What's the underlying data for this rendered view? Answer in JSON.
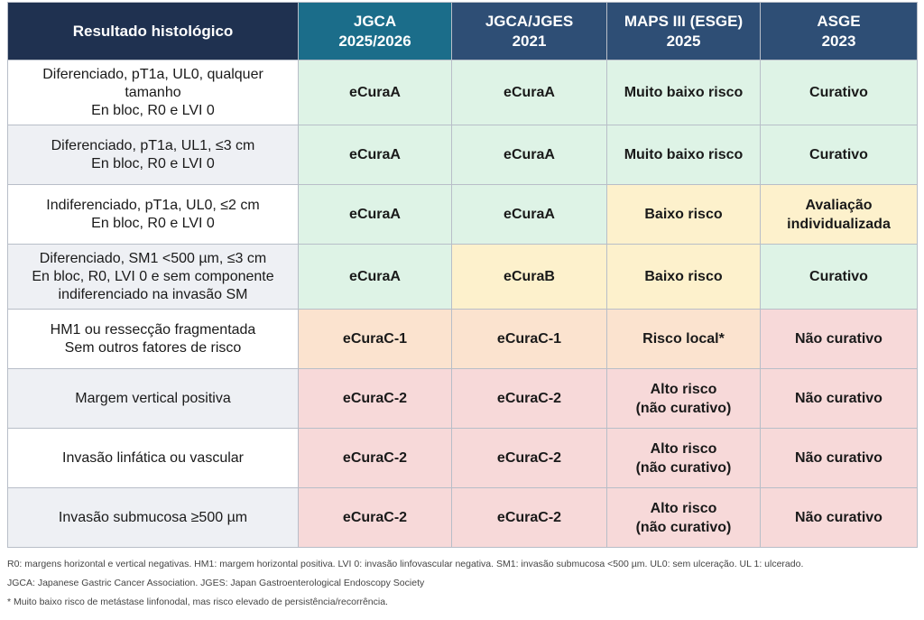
{
  "header": {
    "col0": "Resultado histológico",
    "col1": [
      "JGCA",
      "2025/2026"
    ],
    "col2": [
      "JGCA/JGES",
      "2021"
    ],
    "col3": [
      "MAPS III (ESGE)",
      "2025"
    ],
    "col4": [
      "ASGE",
      "2023"
    ]
  },
  "rows": [
    {
      "desc": [
        "Diferenciado, pT1a, UL0, qualquer",
        "tamanho",
        "En bloc, R0 e LVI 0"
      ],
      "c1": [
        "eCuraA"
      ],
      "c2": [
        "eCuraA"
      ],
      "c3": [
        "Muito baixo risco"
      ],
      "c4": [
        "Curativo"
      ],
      "colors": [
        "green",
        "green",
        "green",
        "green"
      ]
    },
    {
      "desc": [
        "Diferenciado, pT1a, UL1, ≤3 cm",
        "En bloc, R0 e LVI 0"
      ],
      "c1": [
        "eCuraA"
      ],
      "c2": [
        "eCuraA"
      ],
      "c3": [
        "Muito baixo risco"
      ],
      "c4": [
        "Curativo"
      ],
      "colors": [
        "green",
        "green",
        "green",
        "green"
      ]
    },
    {
      "desc": [
        "Indiferenciado, pT1a, UL0, ≤2 cm",
        "En bloc, R0 e LVI 0"
      ],
      "c1": [
        "eCuraA"
      ],
      "c2": [
        "eCuraA"
      ],
      "c3": [
        "Baixo risco"
      ],
      "c4": [
        "Avaliação",
        "individualizada"
      ],
      "colors": [
        "green",
        "green",
        "yellow",
        "yellow"
      ]
    },
    {
      "desc": [
        "Diferenciado, SM1 <500 µm, ≤3 cm",
        "En bloc, R0, LVI 0 e sem componente",
        "indiferenciado na invasão SM"
      ],
      "c1": [
        "eCuraA"
      ],
      "c2": [
        "eCuraB"
      ],
      "c3": [
        "Baixo risco"
      ],
      "c4": [
        "Curativo"
      ],
      "colors": [
        "green",
        "yellow",
        "yellow",
        "green"
      ]
    },
    {
      "desc": [
        "HM1 ou ressecção fragmentada",
        "Sem outros fatores de risco"
      ],
      "c1": [
        "eCuraC-1"
      ],
      "c2": [
        "eCuraC-1"
      ],
      "c3": [
        "Risco local*"
      ],
      "c4": [
        "Não curativo"
      ],
      "colors": [
        "orange",
        "orange",
        "orange",
        "red"
      ]
    },
    {
      "desc": [
        "Margem vertical positiva"
      ],
      "c1": [
        "eCuraC-2"
      ],
      "c2": [
        "eCuraC-2"
      ],
      "c3": [
        "Alto risco",
        "(não curativo)"
      ],
      "c4": [
        "Não curativo"
      ],
      "colors": [
        "red",
        "red",
        "red",
        "red"
      ]
    },
    {
      "desc": [
        "Invasão linfática ou vascular"
      ],
      "c1": [
        "eCuraC-2"
      ],
      "c2": [
        "eCuraC-2"
      ],
      "c3": [
        "Alto risco",
        "(não curativo)"
      ],
      "c4": [
        "Não curativo"
      ],
      "colors": [
        "red",
        "red",
        "red",
        "red"
      ]
    },
    {
      "desc": [
        "Invasão submucosa ≥500 µm"
      ],
      "c1": [
        "eCuraC-2"
      ],
      "c2": [
        "eCuraC-2"
      ],
      "c3": [
        "Alto risco",
        "(não curativo)"
      ],
      "c4": [
        "Não curativo"
      ],
      "colors": [
        "red",
        "red",
        "red",
        "red"
      ]
    }
  ],
  "notes": [
    "R0: margens horizontal e vertical negativas.  HM1: margem horizontal positiva. LVI 0: invasão linfovascular negativa.  SM1: invasão submucosa <500 µm.  UL0: sem ulceração. UL 1: ulcerado.",
    "JGCA: Japanese Gastric Cancer Association. JGES: Japan Gastroenterological Endoscopy Society",
    "* Muito baixo risco de metástase linfonodal, mas risco elevado de persistência/recorrência."
  ],
  "colors": {
    "header_first": "#1f3150",
    "header_jgca": "#1b6d8a",
    "header_other": "#2e4e75",
    "green": "#def3e6",
    "yellow": "#fdf1cc",
    "orange": "#fbe3cf",
    "red": "#f7d9d9"
  }
}
